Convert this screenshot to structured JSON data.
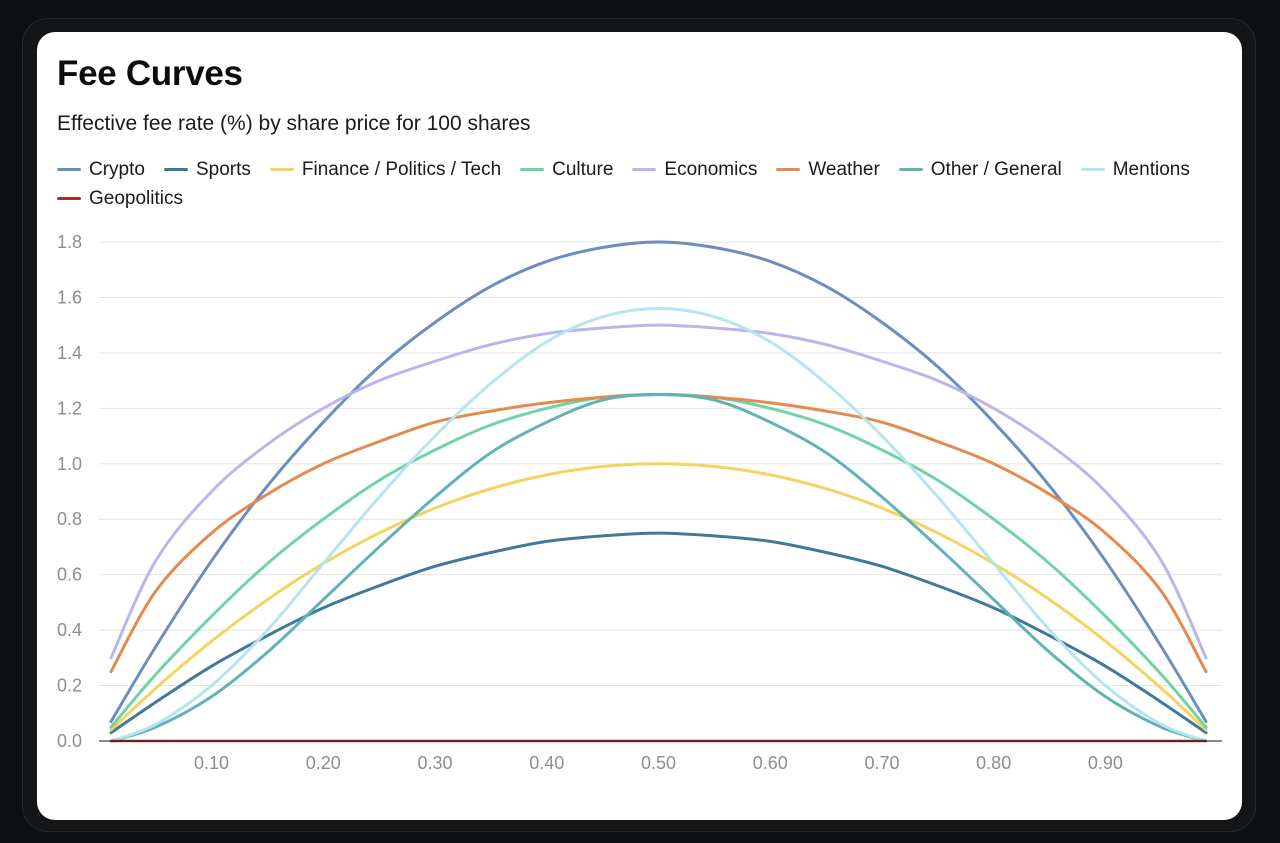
{
  "chart_data": {
    "type": "line",
    "title": "Fee Curves",
    "subtitle": "Effective fee rate (%) by share price for 100 shares",
    "xlabel": "",
    "ylabel": "",
    "xlim": [
      0.01,
      0.99
    ],
    "ylim": [
      0,
      1.8
    ],
    "x_ticks": [
      "0.10",
      "0.20",
      "0.30",
      "0.40",
      "0.50",
      "0.60",
      "0.70",
      "0.80",
      "0.90"
    ],
    "x_tick_values": [
      0.1,
      0.2,
      0.3,
      0.4,
      0.5,
      0.6,
      0.7,
      0.8,
      0.9
    ],
    "y_ticks": [
      "0.0",
      "0.2",
      "0.4",
      "0.6",
      "0.8",
      "1.0",
      "1.2",
      "1.4",
      "1.6",
      "1.8"
    ],
    "y_tick_values": [
      0,
      0.2,
      0.4,
      0.6,
      0.8,
      1.0,
      1.2,
      1.4,
      1.6,
      1.8
    ],
    "grid": true,
    "legend_position": "top",
    "x": [
      0.01,
      0.05,
      0.1,
      0.15,
      0.2,
      0.25,
      0.3,
      0.35,
      0.4,
      0.45,
      0.5,
      0.55,
      0.6,
      0.65,
      0.7,
      0.75,
      0.8,
      0.85,
      0.9,
      0.95,
      0.99
    ],
    "series": [
      {
        "name": "Crypto",
        "color": "#6c8ebf",
        "values": [
          0.07,
          0.34,
          0.65,
          0.92,
          1.15,
          1.35,
          1.51,
          1.64,
          1.73,
          1.78,
          1.8,
          1.78,
          1.73,
          1.64,
          1.51,
          1.35,
          1.15,
          0.92,
          0.65,
          0.34,
          0.07
        ]
      },
      {
        "name": "Sports",
        "color": "#3f7b99",
        "values": [
          0.03,
          0.14,
          0.27,
          0.38,
          0.48,
          0.56,
          0.63,
          0.68,
          0.72,
          0.74,
          0.75,
          0.74,
          0.72,
          0.68,
          0.63,
          0.56,
          0.48,
          0.38,
          0.27,
          0.14,
          0.03
        ]
      },
      {
        "name": "Finance / Politics / Tech",
        "color": "#f4d35e",
        "values": [
          0.04,
          0.19,
          0.36,
          0.51,
          0.64,
          0.75,
          0.84,
          0.91,
          0.96,
          0.99,
          1.0,
          0.99,
          0.96,
          0.91,
          0.84,
          0.75,
          0.64,
          0.51,
          0.36,
          0.19,
          0.04
        ]
      },
      {
        "name": "Culture",
        "color": "#6fd3a6",
        "values": [
          0.05,
          0.24,
          0.45,
          0.64,
          0.8,
          0.94,
          1.05,
          1.14,
          1.2,
          1.24,
          1.25,
          1.24,
          1.2,
          1.14,
          1.05,
          0.94,
          0.8,
          0.64,
          0.45,
          0.24,
          0.05
        ]
      },
      {
        "name": "Economics",
        "color": "#bcb5ec",
        "values": [
          0.3,
          0.65,
          0.9,
          1.07,
          1.2,
          1.3,
          1.37,
          1.43,
          1.47,
          1.49,
          1.5,
          1.49,
          1.47,
          1.43,
          1.37,
          1.3,
          1.2,
          1.07,
          0.9,
          0.65,
          0.3
        ]
      },
      {
        "name": "Weather",
        "color": "#e58a4e",
        "values": [
          0.25,
          0.54,
          0.75,
          0.89,
          1.0,
          1.08,
          1.15,
          1.19,
          1.22,
          1.24,
          1.25,
          1.24,
          1.22,
          1.19,
          1.15,
          1.08,
          1.0,
          0.89,
          0.75,
          0.54,
          0.25
        ]
      },
      {
        "name": "Other / General",
        "color": "#5fb3b3",
        "values": [
          0.0,
          0.05,
          0.16,
          0.32,
          0.51,
          0.7,
          0.88,
          1.04,
          1.15,
          1.23,
          1.25,
          1.23,
          1.15,
          1.04,
          0.88,
          0.7,
          0.51,
          0.32,
          0.16,
          0.05,
          0.0
        ]
      },
      {
        "name": "Mentions",
        "color": "#b6e5ef",
        "values": [
          0.0,
          0.06,
          0.2,
          0.4,
          0.64,
          0.88,
          1.1,
          1.29,
          1.44,
          1.53,
          1.56,
          1.53,
          1.44,
          1.29,
          1.1,
          0.88,
          0.64,
          0.4,
          0.2,
          0.06,
          0.0
        ]
      },
      {
        "name": "Geopolitics",
        "color": "#a93226",
        "values": [
          0,
          0,
          0,
          0,
          0,
          0,
          0,
          0,
          0,
          0,
          0,
          0,
          0,
          0,
          0,
          0,
          0,
          0,
          0,
          0,
          0
        ]
      }
    ]
  }
}
